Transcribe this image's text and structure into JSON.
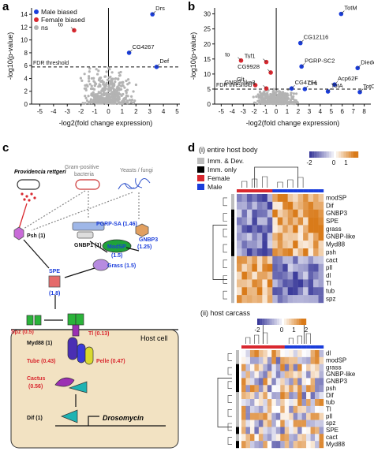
{
  "panels": {
    "a": "a",
    "b": "b",
    "c": "c",
    "d": "d"
  },
  "volcano_legend": {
    "male": "Male biased",
    "female": "Female biased",
    "ns": "ns"
  },
  "colors": {
    "male": "#1a3ddb",
    "female": "#d9282f",
    "ns": "#b3b3b3",
    "imm_dev": "#bdbdbd",
    "imm_only": "#000000",
    "heat_low": "#3a3a9a",
    "heat_mid": "#ffffff",
    "heat_high": "#d97b1a",
    "host_cell": "#f2e2c2"
  },
  "chart_data": [
    {
      "type": "scatter",
      "panel": "a",
      "xlabel": "-log2(fold change expression)",
      "ylabel": "-log10(p-value)",
      "xlim": [
        -5.6,
        5.2
      ],
      "ylim": [
        0,
        15
      ],
      "xticks": [
        -5,
        -4,
        -3,
        -2,
        -1,
        0,
        1,
        2,
        3,
        4,
        5
      ],
      "yticks": [
        0,
        2,
        4,
        6,
        8,
        10,
        12,
        14
      ],
      "threshold_label": "FDR threshold",
      "threshold_y": 5.8,
      "points": [
        {
          "label": "Drs",
          "x": 3.2,
          "y": 14.0,
          "group": "male"
        },
        {
          "label": "to",
          "x": -2.5,
          "y": 11.5,
          "group": "female"
        },
        {
          "label": "CG4267",
          "x": 1.5,
          "y": 8.0,
          "group": "male"
        },
        {
          "label": "Def",
          "x": 3.5,
          "y": 5.8,
          "group": "male"
        }
      ]
    },
    {
      "type": "scatter",
      "panel": "b",
      "xlabel": "-log2(fold change expression)",
      "ylabel": "-log10(p-value)",
      "xlim": [
        -5.6,
        8.6
      ],
      "ylim": [
        0,
        32
      ],
      "xticks": [
        -5,
        -4,
        -3,
        -2,
        -1,
        0,
        1,
        2,
        3,
        4,
        5,
        6,
        7,
        8
      ],
      "yticks": [
        0,
        5,
        10,
        15,
        20,
        25,
        30
      ],
      "threshold_label": "FDR threshold",
      "threshold_y": 5.0,
      "points": [
        {
          "label": "TotM",
          "x": 5.9,
          "y": 30.0,
          "group": "male"
        },
        {
          "label": "CG12116",
          "x": 2.2,
          "y": 20.3,
          "group": "male"
        },
        {
          "label": "to",
          "x": -3.2,
          "y": 14.5,
          "group": "female"
        },
        {
          "label": "Tsf1",
          "x": -0.9,
          "y": 14.0,
          "group": "female"
        },
        {
          "label": "PGRP-SC2",
          "x": 2.3,
          "y": 12.5,
          "group": "male"
        },
        {
          "label": "Diedel",
          "x": 7.4,
          "y": 12.0,
          "group": "male"
        },
        {
          "label": "CG9928",
          "x": -0.5,
          "y": 10.5,
          "group": "female"
        },
        {
          "label": "Acp62F",
          "x": 5.3,
          "y": 6.5,
          "group": "male"
        },
        {
          "label": "Glt",
          "x": -1.9,
          "y": 6.3,
          "group": "female"
        },
        {
          "label": "GNBP-like3",
          "x": -0.9,
          "y": 5.2,
          "group": "female"
        },
        {
          "label": "CG4774",
          "x": 1.4,
          "y": 5.2,
          "group": "male"
        },
        {
          "label": "Drs",
          "x": 2.6,
          "y": 5.0,
          "group": "male"
        },
        {
          "label": "TotA",
          "x": 4.7,
          "y": 4.2,
          "group": "male"
        },
        {
          "label": "TotC",
          "x": 7.6,
          "y": 4.0,
          "group": "male"
        }
      ]
    },
    {
      "type": "heatmap",
      "panel": "d-i",
      "title": "(i) entire host body",
      "scale_ticks": [
        "-2",
        "0",
        "1"
      ],
      "genes": [
        "modSP",
        "Dif",
        "GNBP3",
        "SPE",
        "grass",
        "GNBP-like",
        "Myd88",
        "psh",
        "cact",
        "pll",
        "dl",
        "Tl",
        "tub",
        "spz"
      ],
      "gene_class": [
        "imm_dev",
        "imm_dev",
        "imm_only",
        "imm_only",
        "imm_only",
        "imm_only",
        "imm_only",
        "imm_only",
        "imm_dev",
        "imm_dev",
        "imm_dev",
        "imm_dev",
        "imm_dev",
        "imm_dev"
      ],
      "n_female": 7,
      "n_male": 10
    },
    {
      "type": "heatmap",
      "panel": "d-ii",
      "title": "(ii) host carcass",
      "scale_ticks": [
        "-2",
        "0",
        "1",
        "2"
      ],
      "genes": [
        "dl",
        "modSP",
        "grass",
        "GNBP-like",
        "GNBP3",
        "psh",
        "Dif",
        "tub",
        "Tl",
        "pll",
        "spz",
        "SPE",
        "cact",
        "Myd88"
      ],
      "gene_class": [
        "imm_dev",
        "imm_dev",
        "imm_only",
        "imm_only",
        "imm_only",
        "imm_only",
        "imm_dev",
        "imm_dev",
        "imm_dev",
        "imm_dev",
        "imm_dev",
        "imm_only",
        "imm_dev",
        "imm_only"
      ],
      "n_female": 10,
      "n_male": 9
    }
  ],
  "heat_legend": {
    "imm_dev": "Imm. & Dev.",
    "imm_only": "Imm. only",
    "female": "Female",
    "male": "Male"
  },
  "pathway": {
    "providencia": "Providencia rettgeri",
    "gram_pos_1": "Gram-positive",
    "gram_pos_2": "bacteria",
    "yeast": "Yeasts / fungi",
    "pgrp": "PGRP-SA (1.46)",
    "gnbp1": "GNBP1 (1)",
    "modsp": "ModSP",
    "modsp_fc": "(1.5)",
    "gnbp3_1": "GNBP3",
    "gnbp3_2": "(1.25)",
    "psh": "Psh (1)",
    "grass": "Grass (1.5)",
    "spe_1": "SPE",
    "spe_2": "(1.8)",
    "spz": "Spz (0.5)",
    "tl": "Tl (0.13)",
    "myd88": "Myd88 (1)",
    "tube": "Tube (0.43)",
    "pelle": "Pelle (0.47)",
    "cactus_1": "Cactus",
    "cactus_2": "(0.56)",
    "dif": "Dif (1)",
    "drosomycin": "Drosomycin",
    "host_cell": "Host cell"
  }
}
